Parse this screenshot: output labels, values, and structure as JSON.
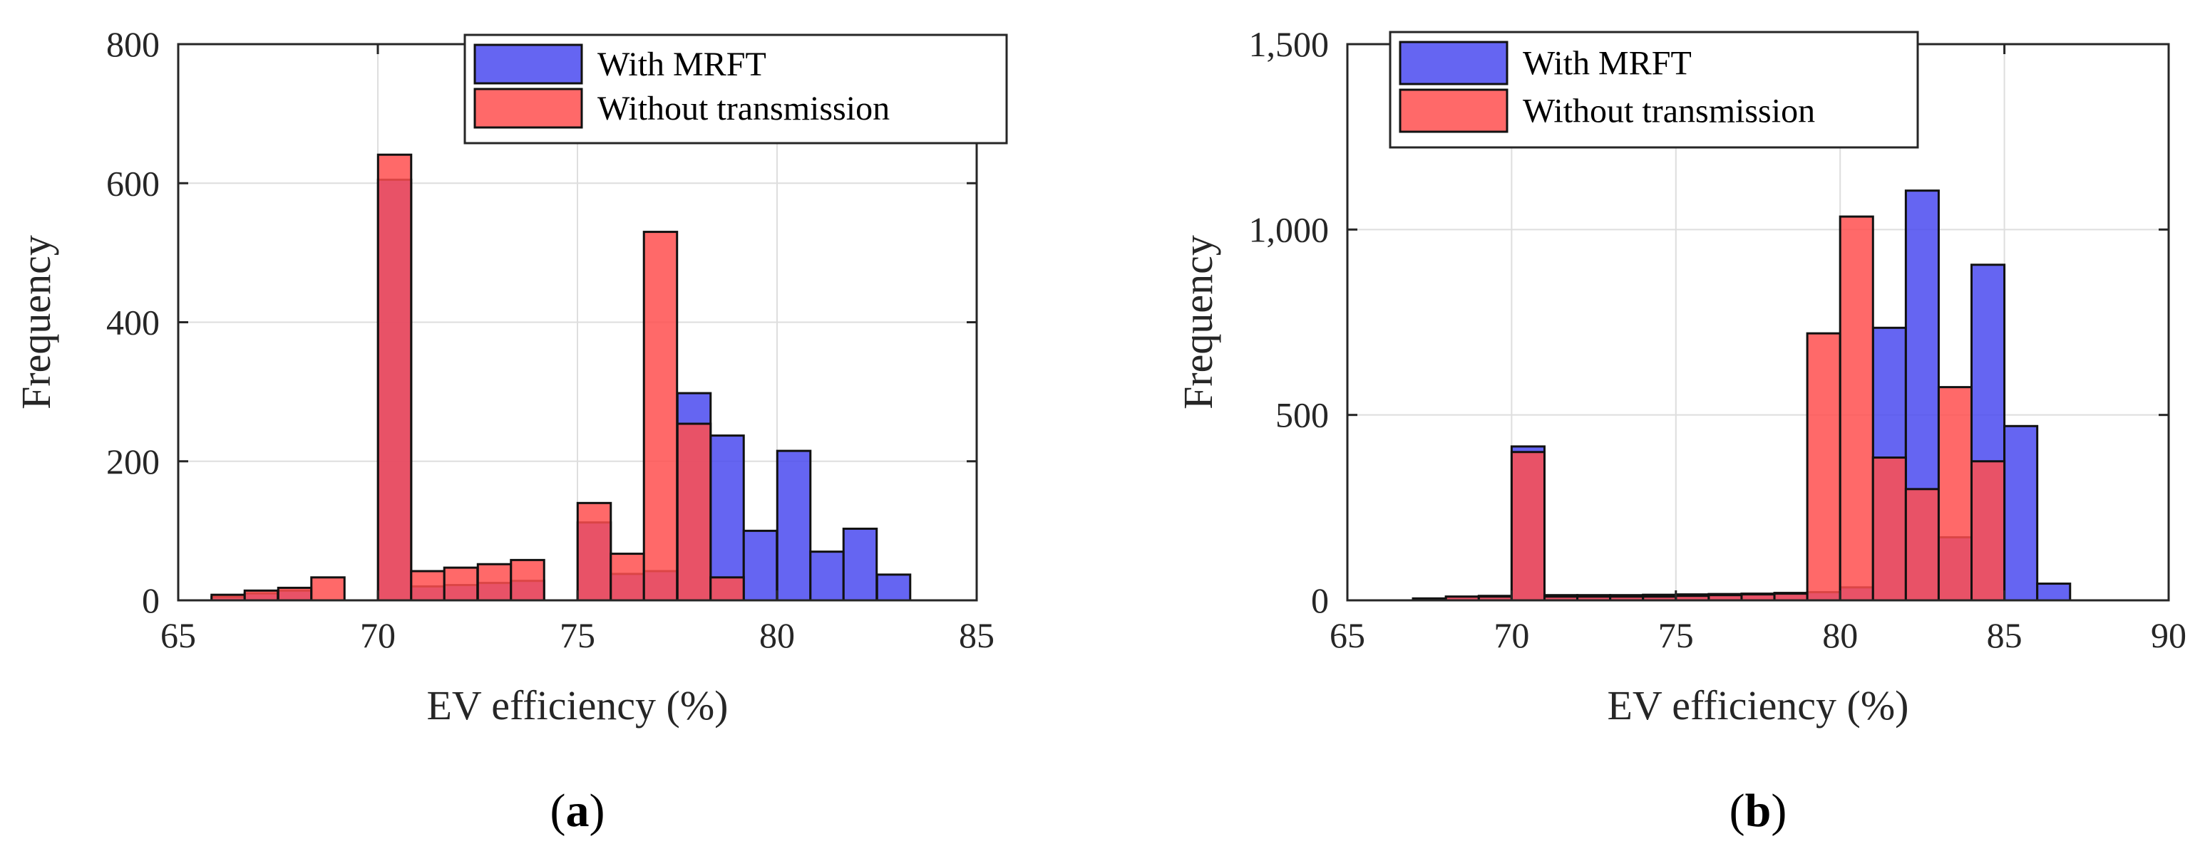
{
  "colors": {
    "with_mrft": "#4a4af0",
    "without_transmission": "#ff4f4f",
    "axis": "#262626",
    "grid": "#dedede"
  },
  "chart_data": [
    {
      "type": "histogram",
      "panel_label": {
        "open": "(",
        "letter": "a",
        "close": ")"
      },
      "xlabel": "EV efficiency (%)",
      "ylabel": "Frequency",
      "xlim": [
        65,
        85
      ],
      "ylim": [
        0,
        800
      ],
      "xticks": [
        65,
        70,
        75,
        80,
        85
      ],
      "yticks": [
        0,
        200,
        400,
        600,
        800
      ],
      "ytick_labels": [
        "0",
        "200",
        "400",
        "600",
        "800"
      ],
      "grid": true,
      "legend_position": "top-right",
      "bin_width": 0.83,
      "series": [
        {
          "name": "With MRFT",
          "color": "with_mrft",
          "bins": [
            {
              "x": 66.25,
              "v": 5
            },
            {
              "x": 67.08,
              "v": 10
            },
            {
              "x": 67.92,
              "v": 14
            },
            {
              "x": 68.75,
              "v": 0
            },
            {
              "x": 69.58,
              "v": 0
            },
            {
              "x": 70.42,
              "v": 605
            },
            {
              "x": 71.25,
              "v": 20
            },
            {
              "x": 72.08,
              "v": 22
            },
            {
              "x": 72.92,
              "v": 25
            },
            {
              "x": 73.75,
              "v": 28
            },
            {
              "x": 74.58,
              "v": 0
            },
            {
              "x": 75.42,
              "v": 112
            },
            {
              "x": 76.25,
              "v": 38
            },
            {
              "x": 77.08,
              "v": 42
            },
            {
              "x": 77.92,
              "v": 298
            },
            {
              "x": 78.75,
              "v": 237
            },
            {
              "x": 79.58,
              "v": 100
            },
            {
              "x": 80.42,
              "v": 215
            },
            {
              "x": 81.25,
              "v": 70
            },
            {
              "x": 82.08,
              "v": 103
            },
            {
              "x": 82.92,
              "v": 37
            }
          ]
        },
        {
          "name": "Without transmission",
          "color": "without_transmission",
          "bins": [
            {
              "x": 66.25,
              "v": 8
            },
            {
              "x": 67.08,
              "v": 14
            },
            {
              "x": 67.92,
              "v": 18
            },
            {
              "x": 68.75,
              "v": 33
            },
            {
              "x": 69.58,
              "v": 0
            },
            {
              "x": 70.42,
              "v": 641
            },
            {
              "x": 71.25,
              "v": 42
            },
            {
              "x": 72.08,
              "v": 47
            },
            {
              "x": 72.92,
              "v": 52
            },
            {
              "x": 73.75,
              "v": 58
            },
            {
              "x": 74.58,
              "v": 0
            },
            {
              "x": 75.42,
              "v": 140
            },
            {
              "x": 76.25,
              "v": 67
            },
            {
              "x": 77.08,
              "v": 530
            },
            {
              "x": 77.92,
              "v": 254
            },
            {
              "x": 78.75,
              "v": 33
            }
          ]
        }
      ]
    },
    {
      "type": "histogram",
      "panel_label": {
        "open": "(",
        "letter": "b",
        "close": ")"
      },
      "xlabel": "EV efficiency (%)",
      "ylabel": "Frequency",
      "xlim": [
        65,
        90
      ],
      "ylim": [
        0,
        1500
      ],
      "xticks": [
        65,
        70,
        75,
        80,
        85,
        90
      ],
      "yticks": [
        0,
        500,
        1000,
        1500
      ],
      "ytick_labels": [
        "0",
        "500",
        "1,000",
        "1,500"
      ],
      "grid": true,
      "legend_position": "top-left",
      "bin_width": 1.0,
      "series": [
        {
          "name": "With MRFT",
          "color": "with_mrft",
          "bins": [
            {
              "x": 67.5,
              "v": 5
            },
            {
              "x": 68.5,
              "v": 10
            },
            {
              "x": 69.5,
              "v": 12
            },
            {
              "x": 70.5,
              "v": 415
            },
            {
              "x": 71.5,
              "v": 14
            },
            {
              "x": 72.5,
              "v": 14
            },
            {
              "x": 73.5,
              "v": 14
            },
            {
              "x": 74.5,
              "v": 15
            },
            {
              "x": 75.5,
              "v": 16
            },
            {
              "x": 76.5,
              "v": 17
            },
            {
              "x": 77.5,
              "v": 18
            },
            {
              "x": 78.5,
              "v": 20
            },
            {
              "x": 79.5,
              "v": 22
            },
            {
              "x": 80.5,
              "v": 35
            },
            {
              "x": 81.5,
              "v": 735
            },
            {
              "x": 82.5,
              "v": 1105
            },
            {
              "x": 83.5,
              "v": 170
            },
            {
              "x": 84.5,
              "v": 905
            },
            {
              "x": 85.5,
              "v": 470
            },
            {
              "x": 86.5,
              "v": 45
            }
          ]
        },
        {
          "name": "Without transmission",
          "color": "without_transmission",
          "bins": [
            {
              "x": 67.5,
              "v": 5
            },
            {
              "x": 68.5,
              "v": 10
            },
            {
              "x": 69.5,
              "v": 10
            },
            {
              "x": 70.5,
              "v": 400
            },
            {
              "x": 71.5,
              "v": 10
            },
            {
              "x": 72.5,
              "v": 10
            },
            {
              "x": 73.5,
              "v": 10
            },
            {
              "x": 74.5,
              "v": 10
            },
            {
              "x": 75.5,
              "v": 12
            },
            {
              "x": 76.5,
              "v": 14
            },
            {
              "x": 77.5,
              "v": 16
            },
            {
              "x": 78.5,
              "v": 18
            },
            {
              "x": 79.5,
              "v": 720
            },
            {
              "x": 80.5,
              "v": 1035
            },
            {
              "x": 81.5,
              "v": 385
            },
            {
              "x": 82.5,
              "v": 300
            },
            {
              "x": 83.5,
              "v": 575
            },
            {
              "x": 84.5,
              "v": 375
            }
          ]
        }
      ]
    }
  ]
}
